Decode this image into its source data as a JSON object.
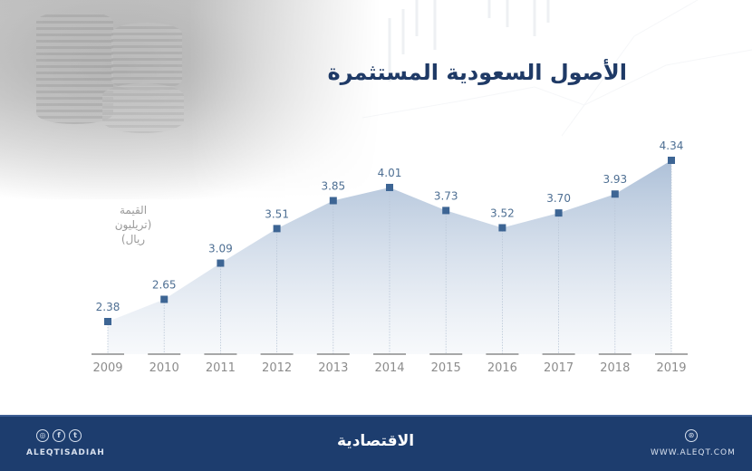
{
  "header": {
    "title": "الأصول السعودية المستثمرة"
  },
  "axis": {
    "unit_label": "القيمة",
    "unit_sublabel": "(تريليون ريال)"
  },
  "footer": {
    "social_icons": [
      "instagram-icon",
      "facebook-icon",
      "twitter-icon"
    ],
    "handle": "ALEQTISADIAH",
    "logo": "الاقتصادية",
    "web_icon": "globe-icon",
    "website": "WWW.ALEQT.COM"
  },
  "colors": {
    "title": "#1f3a66",
    "marker": "#3d6594",
    "area_top": "#a9bdd6",
    "area_bottom": "#f2f5f9",
    "label": "#4e6f93",
    "year": "#8c8c8c",
    "footer_bg": "#1d3d6e"
  },
  "chart_data": {
    "type": "area",
    "title": "الأصول السعودية المستثمرة",
    "ylabel": "القيمة (تريليون ريال)",
    "xlabel": "",
    "categories": [
      "2009",
      "2010",
      "2011",
      "2012",
      "2013",
      "2014",
      "2015",
      "2016",
      "2017",
      "2018",
      "2019"
    ],
    "values": [
      2.38,
      2.65,
      3.09,
      3.51,
      3.85,
      4.01,
      3.73,
      3.52,
      3.7,
      3.93,
      4.34
    ],
    "labels": [
      "2.38",
      "2.65",
      "3.09",
      "3.51",
      "3.85",
      "4.01",
      "3.73",
      "3.52",
      "3.70",
      "3.93",
      "4.34"
    ],
    "grid": false,
    "legend": "none"
  }
}
